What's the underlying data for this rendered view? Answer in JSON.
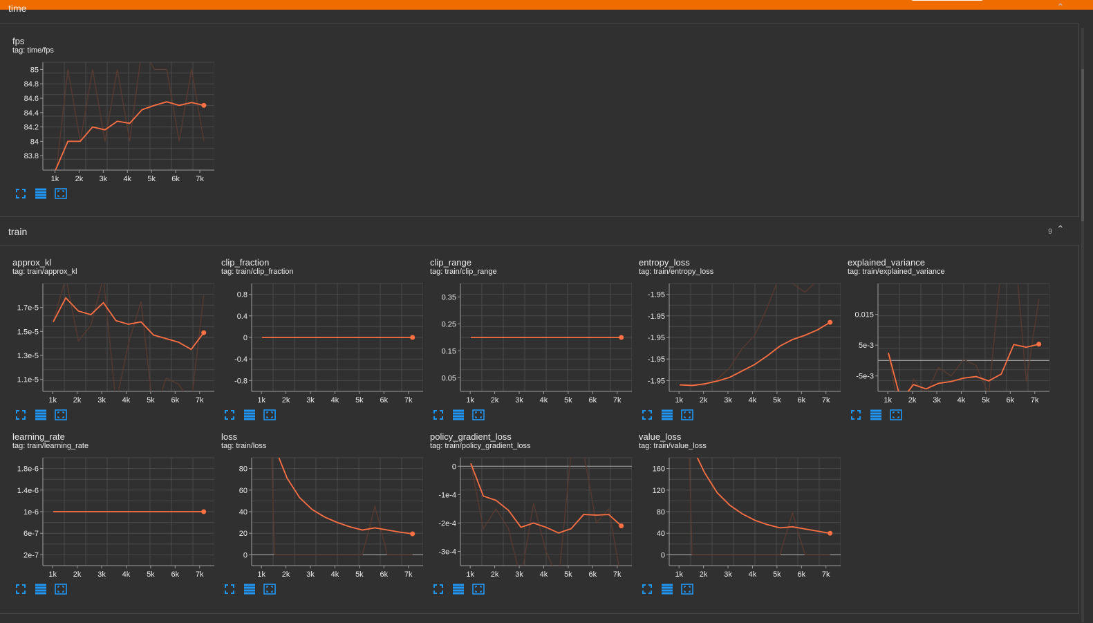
{
  "app": {
    "accent": "#ef6c00",
    "line_color": "#ff7043",
    "raw_line_color": "#5a3a30"
  },
  "groups": {
    "time": {
      "title": "time",
      "collapse_icon": "chevron-up-icon"
    },
    "train": {
      "title": "train",
      "count": "9",
      "collapse_icon": "chevron-up-icon"
    }
  },
  "actions": {
    "icons": [
      "fullscreen-icon",
      "data-table-icon",
      "fit-domain-icon"
    ]
  },
  "cards": [
    {
      "id": "fps",
      "title": "fps",
      "tag": "tag: time/fps"
    },
    {
      "id": "approx_kl",
      "title": "approx_kl",
      "tag": "tag: train/approx_kl"
    },
    {
      "id": "clip_fraction",
      "title": "clip_fraction",
      "tag": "tag: train/clip_fraction"
    },
    {
      "id": "clip_range",
      "title": "clip_range",
      "tag": "tag: train/clip_range"
    },
    {
      "id": "entropy_loss",
      "title": "entropy_loss",
      "tag": "tag: train/entropy_loss"
    },
    {
      "id": "explained_variance",
      "title": "explained_variance",
      "tag": "tag: train/explained_variance"
    },
    {
      "id": "learning_rate",
      "title": "learning_rate",
      "tag": "tag: train/learning_rate"
    },
    {
      "id": "loss",
      "title": "loss",
      "tag": "tag: train/loss"
    },
    {
      "id": "policy_gradient_loss",
      "title": "policy_gradient_loss",
      "tag": "tag: train/policy_gradient_loss"
    },
    {
      "id": "value_loss",
      "title": "value_loss",
      "tag": "tag: train/value_loss"
    }
  ],
  "chart_data": [
    {
      "id": "fps",
      "type": "line",
      "x": [
        1024,
        1536,
        2048,
        2560,
        3072,
        3584,
        4096,
        4608,
        5120,
        5632,
        6144,
        6656,
        7168
      ],
      "ylim": [
        83.6,
        85.1
      ],
      "xlim": [
        500,
        7600
      ],
      "yticks": [
        "85",
        "84.8",
        "84.6",
        "84.4",
        "84.2",
        "84",
        "83.8"
      ],
      "ytick_vals": [
        85,
        84.8,
        84.6,
        84.4,
        84.2,
        84,
        83.8
      ],
      "xticks": [
        "1k",
        "2k",
        "3k",
        "4k",
        "5k",
        "6k",
        "7k"
      ],
      "smoothed": [
        83.6,
        84,
        84,
        84.2,
        84.16,
        84.28,
        84.25,
        84.44,
        84.5,
        84.55,
        84.5,
        84.54,
        84.5
      ],
      "raw": [
        83.5,
        85,
        84,
        85,
        84,
        85,
        84,
        85.3,
        85,
        85,
        84,
        85,
        84
      ]
    },
    {
      "id": "approx_kl",
      "type": "line",
      "x": [
        1024,
        1536,
        2048,
        2560,
        3072,
        3584,
        4096,
        4608,
        5120,
        5632,
        6144,
        6656,
        7168
      ],
      "ylim": [
        1e-05,
        1.9e-05
      ],
      "xlim": [
        600,
        7600
      ],
      "yticks": [
        "1.7e-5",
        "1.5e-5",
        "1.3e-5",
        "1.1e-5"
      ],
      "ytick_vals": [
        1.7e-05,
        1.5e-05,
        1.3e-05,
        1.1e-05
      ],
      "xticks": [
        "1k",
        "2k",
        "3k",
        "4k",
        "5k",
        "6k",
        "7k"
      ],
      "smoothed": [
        1.58e-05,
        1.78e-05,
        1.67e-05,
        1.64e-05,
        1.74e-05,
        1.59e-05,
        1.56e-05,
        1.58e-05,
        1.47e-05,
        1.44e-05,
        1.41e-05,
        1.35e-05,
        1.49e-05
      ],
      "raw": [
        1.58e-05,
        1.95e-05,
        1.42e-05,
        1.55e-05,
        1.95e-05,
        9e-06,
        1.4e-05,
        1.75e-05,
        8e-06,
        1.11e-05,
        1.06e-05,
        9e-06,
        1.8e-05
      ]
    },
    {
      "id": "clip_fraction",
      "type": "line",
      "x": [
        1024,
        1536,
        2048,
        2560,
        3072,
        3584,
        4096,
        4608,
        5120,
        5632,
        6144,
        6656,
        7168
      ],
      "ylim": [
        -1.0,
        1.0
      ],
      "xlim": [
        600,
        7600
      ],
      "yticks": [
        "0.8",
        "0.4",
        "0",
        "-0.4",
        "-0.8"
      ],
      "ytick_vals": [
        0.8,
        0.4,
        0,
        -0.4,
        -0.8
      ],
      "xticks": [
        "1k",
        "2k",
        "3k",
        "4k",
        "5k",
        "6k",
        "7k"
      ],
      "smoothed": [
        0,
        0,
        0,
        0,
        0,
        0,
        0,
        0,
        0,
        0,
        0,
        0,
        0
      ],
      "raw": [
        0,
        0,
        0,
        0,
        0,
        0,
        0,
        0,
        0,
        0,
        0,
        0,
        0
      ]
    },
    {
      "id": "clip_range",
      "type": "line",
      "x": [
        1024,
        1536,
        2048,
        2560,
        3072,
        3584,
        4096,
        4608,
        5120,
        5632,
        6144,
        6656,
        7168
      ],
      "ylim": [
        0.0,
        0.4
      ],
      "xlim": [
        600,
        7600
      ],
      "yticks": [
        "0.35",
        "0.25",
        "0.15",
        "0.05"
      ],
      "ytick_vals": [
        0.35,
        0.25,
        0.15,
        0.05
      ],
      "xticks": [
        "1k",
        "2k",
        "3k",
        "4k",
        "5k",
        "6k",
        "7k"
      ],
      "smoothed": [
        0.2,
        0.2,
        0.2,
        0.2,
        0.2,
        0.2,
        0.2,
        0.2,
        0.2,
        0.2,
        0.2,
        0.2,
        0.2
      ],
      "raw": [
        0.2,
        0.2,
        0.2,
        0.2,
        0.2,
        0.2,
        0.2,
        0.2,
        0.2,
        0.2,
        0.2,
        0.2,
        0.2
      ]
    },
    {
      "id": "entropy_loss",
      "type": "line",
      "x": [
        1024,
        1536,
        2048,
        2560,
        3072,
        3584,
        4096,
        4608,
        5120,
        5632,
        6144,
        6656,
        7168
      ],
      "ylim": [
        0,
        100
      ],
      "xlim": [
        600,
        7600
      ],
      "yticks": [
        "-1.95",
        "-1.95",
        "-1.95",
        "-1.95",
        "-1.95"
      ],
      "ytick_vals": [
        90,
        70,
        50,
        30,
        10
      ],
      "xticks": [
        "1k",
        "2k",
        "3k",
        "4k",
        "5k",
        "6k",
        "7k"
      ],
      "smoothed": [
        6,
        5.5,
        7,
        9.5,
        13,
        19,
        25,
        33,
        42,
        48,
        52,
        57,
        64
      ],
      "raw": [
        6,
        5,
        6,
        11,
        22,
        40,
        52,
        78,
        108,
        100,
        92,
        103,
        113
      ]
    },
    {
      "id": "explained_variance",
      "type": "line",
      "x": [
        1024,
        1536,
        2048,
        2560,
        3072,
        3584,
        4096,
        4608,
        5120,
        5632,
        6144,
        6656,
        7168
      ],
      "ylim": [
        -0.01,
        0.025
      ],
      "xlim": [
        600,
        7600
      ],
      "yticks": [
        "0.015",
        "5e-3",
        "-5e-3"
      ],
      "ytick_vals": [
        0.015,
        0.005,
        -0.005
      ],
      "xticks": [
        "1k",
        "2k",
        "3k",
        "4k",
        "5k",
        "6k",
        "7k"
      ],
      "zero_line": 0,
      "smoothed": [
        0.0025,
        -0.013,
        -0.0078,
        -0.0092,
        -0.0074,
        -0.0068,
        -0.0057,
        -0.0052,
        -0.0066,
        -0.0044,
        0.0052,
        0.0043,
        0.0053
      ],
      "raw": [
        0.0025,
        -0.02,
        -0.006,
        -0.011,
        -0.0023,
        -0.005,
        0.0003,
        -0.0016,
        -0.011,
        0.03,
        0.04,
        -0.007,
        0.02
      ]
    },
    {
      "id": "learning_rate",
      "type": "line",
      "x": [
        1024,
        1536,
        2048,
        2560,
        3072,
        3584,
        4096,
        4608,
        5120,
        5632,
        6144,
        6656,
        7168
      ],
      "ylim": [
        0,
        2e-06
      ],
      "xlim": [
        600,
        7600
      ],
      "yticks": [
        "1.8e-6",
        "1.4e-6",
        "1e-6",
        "6e-7",
        "2e-7"
      ],
      "ytick_vals": [
        1.8e-06,
        1.4e-06,
        1e-06,
        6e-07,
        2e-07
      ],
      "xticks": [
        "1k",
        "2k",
        "3k",
        "4k",
        "5k",
        "6k",
        "7k"
      ],
      "smoothed": [
        1e-06,
        1e-06,
        1e-06,
        1e-06,
        1e-06,
        1e-06,
        1e-06,
        1e-06,
        1e-06,
        1e-06,
        1e-06,
        1e-06,
        1e-06
      ],
      "raw": [
        1e-06,
        1e-06,
        1e-06,
        1e-06,
        1e-06,
        1e-06,
        1e-06,
        1e-06,
        1e-06,
        1e-06,
        1e-06,
        1e-06,
        1e-06
      ]
    },
    {
      "id": "loss",
      "type": "line",
      "x": [
        1024,
        1536,
        2048,
        2560,
        3072,
        3584,
        4096,
        4608,
        5120,
        5632,
        6144,
        6656,
        7168
      ],
      "ylim": [
        -10,
        90
      ],
      "xlim": [
        600,
        7600
      ],
      "yticks": [
        "80",
        "60",
        "40",
        "20",
        "0"
      ],
      "ytick_vals": [
        80,
        60,
        40,
        20,
        0
      ],
      "xticks": [
        "1k",
        "2k",
        "3k",
        "4k",
        "5k",
        "6k",
        "7k"
      ],
      "zero_line": 0,
      "smoothed": [
        140,
        100,
        71,
        53,
        42,
        35,
        30,
        26,
        23,
        25,
        23,
        21,
        19.5
      ],
      "raw": [
        400,
        0,
        0,
        0,
        0,
        0,
        0,
        0,
        0,
        45,
        0,
        0,
        0
      ]
    },
    {
      "id": "policy_gradient_loss",
      "type": "line",
      "x": [
        1024,
        1536,
        2048,
        2560,
        3072,
        3584,
        4096,
        4608,
        5120,
        5632,
        6144,
        6656,
        7168
      ],
      "ylim": [
        -0.00035,
        3e-05
      ],
      "xlim": [
        600,
        7600
      ],
      "yticks": [
        "0",
        "-1e-4",
        "-2e-4",
        "-3e-4"
      ],
      "ytick_vals": [
        0,
        -0.0001,
        -0.0002,
        -0.0003
      ],
      "xticks": [
        "1k",
        "2k",
        "3k",
        "4k",
        "5k",
        "6k",
        "7k"
      ],
      "zero_line": 0,
      "smoothed": [
        1e-05,
        -0.000105,
        -0.00012,
        -0.000155,
        -0.000215,
        -0.0002,
        -0.000215,
        -0.000235,
        -0.00022,
        -0.00017,
        -0.000172,
        -0.00017,
        -0.00021
      ],
      "raw": [
        1e-05,
        -0.00022,
        -0.00015,
        -0.00022,
        -0.0004,
        -0.00013,
        -0.0003,
        -0.0004,
        5e-05,
        5e-05,
        -0.0002,
        -0.00015,
        -0.0004
      ]
    },
    {
      "id": "value_loss",
      "type": "line",
      "x": [
        1024,
        1536,
        2048,
        2560,
        3072,
        3584,
        4096,
        4608,
        5120,
        5632,
        6144,
        6656,
        7168
      ],
      "ylim": [
        -20,
        180
      ],
      "xlim": [
        600,
        7600
      ],
      "yticks": [
        "160",
        "120",
        "80",
        "40",
        "0"
      ],
      "ytick_vals": [
        160,
        120,
        80,
        40,
        0
      ],
      "xticks": [
        "1k",
        "2k",
        "3k",
        "4k",
        "5k",
        "6k",
        "7k"
      ],
      "zero_line": 0,
      "smoothed": [
        300,
        200,
        152,
        115,
        92,
        76,
        64,
        56,
        50,
        52,
        48,
        44,
        40
      ],
      "raw": [
        800,
        0,
        0,
        0,
        0,
        0,
        0,
        0,
        0,
        78,
        0,
        0,
        0
      ]
    }
  ]
}
